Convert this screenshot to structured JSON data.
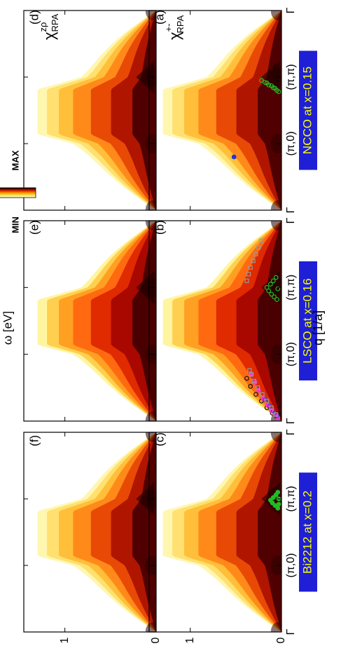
{
  "figure": {
    "ylabel": "ω [eV]",
    "xlabel": "q [1/a]",
    "colorbar": {
      "min_label": "MIN",
      "max_label": "MAX"
    }
  },
  "chart_data": [
    {
      "type": "heatmap",
      "panel_label": "(a)",
      "material": "NCCO at x=0.15",
      "annotation": {
        "base": "χ",
        "sup": "+-",
        "sub": "RPA"
      },
      "x_ticks": [
        "Γ",
        "(π,0)",
        "(π,π)",
        "Γ"
      ],
      "y_ticks": [
        "0",
        "1"
      ],
      "ylim": [
        0,
        1.45
      ],
      "overlays": [
        {
          "marker": "circle",
          "color": "#22bb22",
          "fill": "none",
          "points": [
            [
              1.8,
              0.05
            ],
            [
              1.84,
              0.09
            ],
            [
              1.88,
              0.14
            ],
            [
              1.92,
              0.18
            ],
            [
              1.95,
              0.22
            ],
            [
              1.78,
              0.03
            ],
            [
              1.83,
              0.07
            ],
            [
              1.87,
              0.11
            ],
            [
              1.91,
              0.16
            ]
          ]
        },
        {
          "marker": "circle",
          "color": "#2233dd",
          "fill": "#2233dd",
          "points": [
            [
              0.8,
              0.52
            ]
          ]
        }
      ]
    },
    {
      "type": "heatmap",
      "panel_label": "(b)",
      "material": "LSCO at x=0.16",
      "x_ticks": [
        "Γ",
        "(π,0)",
        "(π,π)",
        "Γ"
      ],
      "y_ticks": [
        "0",
        "1"
      ],
      "ylim": [
        0,
        1.45
      ],
      "overlays": [
        {
          "marker": "circle",
          "color": "#111111",
          "fill": "none",
          "points": [
            [
              0.06,
              0.05
            ],
            [
              0.12,
              0.1
            ],
            [
              0.2,
              0.16
            ],
            [
              0.3,
              0.22
            ],
            [
              0.4,
              0.28
            ],
            [
              0.52,
              0.34
            ],
            [
              0.64,
              0.38
            ]
          ]
        },
        {
          "marker": "circle",
          "color": "#ff33cc",
          "fill": "#ff33cc",
          "points": [
            [
              0.05,
              0.04
            ],
            [
              0.1,
              0.07
            ],
            [
              0.16,
              0.11
            ],
            [
              0.24,
              0.15
            ],
            [
              0.34,
              0.2
            ],
            [
              0.46,
              0.25
            ],
            [
              0.58,
              0.29
            ],
            [
              0.7,
              0.33
            ]
          ]
        },
        {
          "marker": "circle",
          "color": "#3344dd",
          "fill": "none",
          "points": [
            [
              0.08,
              0.05
            ],
            [
              0.15,
              0.09
            ],
            [
              0.22,
              0.13
            ],
            [
              0.32,
              0.18
            ]
          ]
        },
        {
          "marker": "square",
          "color": "#999999",
          "fill": "none",
          "points": [
            [
              0.1,
              0.06
            ],
            [
              0.2,
              0.11
            ],
            [
              0.3,
              0.16
            ],
            [
              0.4,
              0.21
            ],
            [
              0.5,
              0.26
            ],
            [
              0.6,
              0.3
            ],
            [
              0.7,
              0.33
            ],
            [
              0.76,
              0.35
            ],
            [
              2.1,
              0.38
            ],
            [
              2.2,
              0.36
            ],
            [
              2.3,
              0.34
            ],
            [
              2.4,
              0.31
            ],
            [
              2.5,
              0.28
            ],
            [
              2.6,
              0.25
            ],
            [
              2.7,
              0.22
            ]
          ]
        },
        {
          "marker": "circle",
          "color": "#22bb22",
          "fill": "none",
          "points": [
            [
              1.82,
              0.05
            ],
            [
              1.86,
              0.08
            ],
            [
              1.9,
              0.11
            ],
            [
              1.95,
              0.14
            ],
            [
              2.0,
              0.16
            ],
            [
              2.05,
              0.12
            ],
            [
              2.1,
              0.09
            ],
            [
              2.15,
              0.06
            ],
            [
              1.98,
              0.04
            ]
          ]
        }
      ]
    },
    {
      "type": "heatmap",
      "panel_label": "(c)",
      "material": "Bi2212 at x=0.2",
      "x_ticks": [
        "Γ",
        "(π,0)",
        "(π,π)",
        "Γ"
      ],
      "y_ticks": [
        "0",
        "1"
      ],
      "ylim": [
        0,
        1.45
      ],
      "overlays": [
        {
          "marker": "circle",
          "color": "#22bb22",
          "fill": "#22bb22",
          "points": [
            [
              1.86,
              0.04
            ],
            [
              1.9,
              0.07
            ],
            [
              1.94,
              0.1
            ],
            [
              1.98,
              0.12
            ],
            [
              2.02,
              0.09
            ],
            [
              2.06,
              0.06
            ],
            [
              2.1,
              0.04
            ],
            [
              1.92,
              0.03
            ],
            [
              2.0,
              0.03
            ]
          ]
        }
      ]
    },
    {
      "type": "heatmap",
      "panel_label": "(d)",
      "material": "NCCO at x=0.15",
      "annotation": {
        "base": "χ",
        "sup": "zρ",
        "sub": "RPA"
      },
      "x_ticks": [
        "Γ",
        "(π,0)",
        "(π,π)",
        "Γ"
      ],
      "y_ticks": [
        "0",
        "1"
      ],
      "ylim": [
        0,
        1.45
      ],
      "overlays": []
    },
    {
      "type": "heatmap",
      "panel_label": "(e)",
      "material": "LSCO at x=0.16",
      "x_ticks": [
        "Γ",
        "(π,0)",
        "(π,π)",
        "Γ"
      ],
      "y_ticks": [
        "0",
        "1"
      ],
      "ylim": [
        0,
        1.45
      ],
      "overlays": []
    },
    {
      "type": "heatmap",
      "panel_label": "(f)",
      "material": "Bi2212 at x=0.2",
      "x_ticks": [
        "Γ",
        "(π,0)",
        "(π,π)",
        "Γ"
      ],
      "y_ticks": [
        "0",
        "1"
      ],
      "ylim": [
        0,
        1.45
      ],
      "overlays": []
    }
  ]
}
